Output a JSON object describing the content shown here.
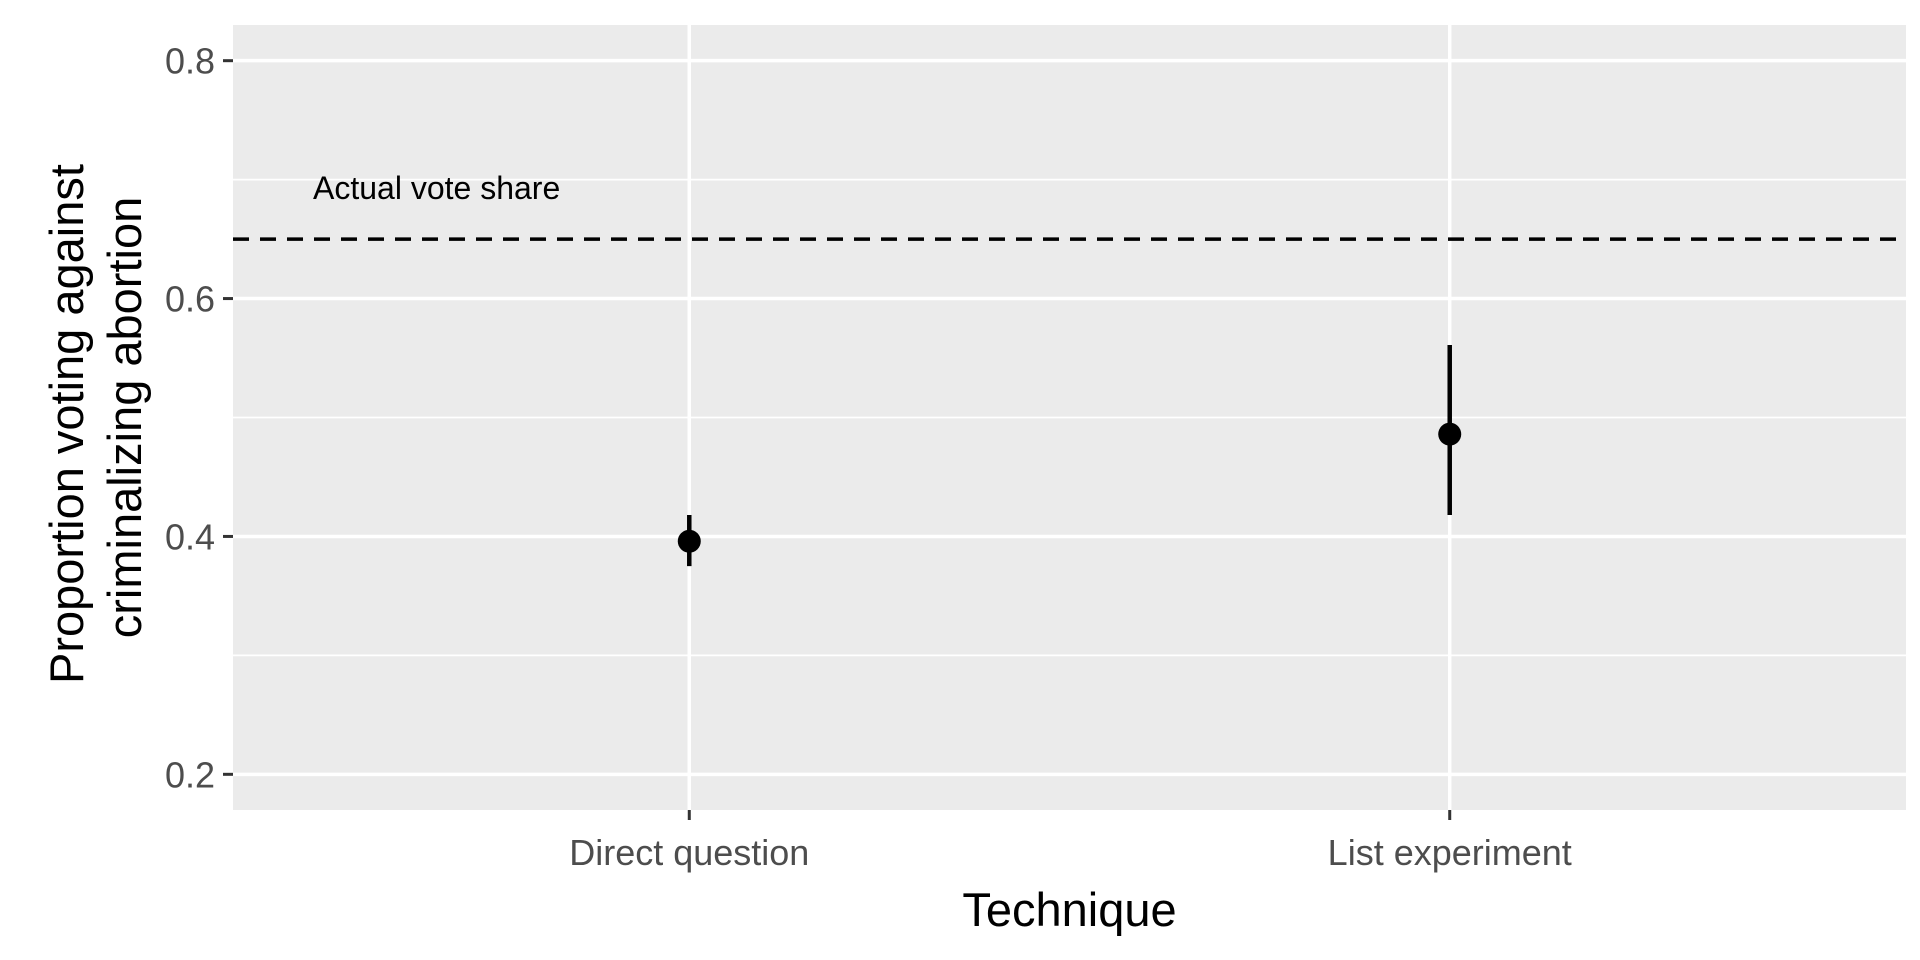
{
  "chart_data": {
    "type": "scatter",
    "title": "",
    "xlabel": "Technique",
    "ylabel_lines": [
      "Proportion voting against",
      "criminalizing abortion"
    ],
    "categories": [
      "Direct question",
      "List experiment"
    ],
    "points": [
      {
        "category": "Direct question",
        "estimate": 0.396,
        "lower": 0.375,
        "upper": 0.418
      },
      {
        "category": "List experiment",
        "estimate": 0.486,
        "lower": 0.418,
        "upper": 0.561
      }
    ],
    "reference_line": {
      "value": 0.65,
      "label": "Actual vote share",
      "style": "dashed"
    },
    "ylim": [
      0.17,
      0.83
    ],
    "y_ticks": [
      0.2,
      0.4,
      0.6,
      0.8
    ],
    "y_tick_labels": [
      "0.2",
      "0.4",
      "0.6",
      "0.8"
    ],
    "grid": true,
    "legend": "none",
    "colors": {
      "panel": "#ebebeb",
      "grid": "#ffffff",
      "point": "#000000",
      "tick_text": "#4d4d4d",
      "tick": "#333333"
    }
  }
}
